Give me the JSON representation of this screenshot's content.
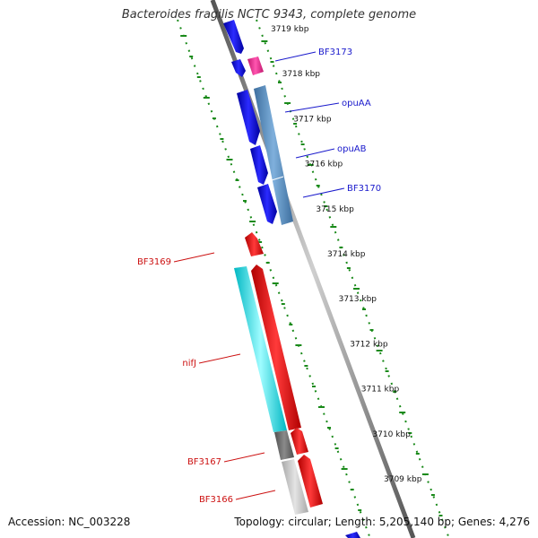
{
  "title": "Bacteroides fragilis NCTC 9343, complete genome",
  "footer": {
    "accession": "Accession: NC_003228",
    "summary": "Topology: circular; Length: 5,205,140 bp; Genes: 4,276"
  },
  "colors": {
    "label_forward": "#1a1acc",
    "label_reverse": "#cc1111",
    "gc_tick": "#1a8a1a",
    "backbone": "#888888"
  },
  "scale_ticks": [
    "3719 kbp",
    "3718 kbp",
    "3717 kbp",
    "3716 kbp",
    "3715 kbp",
    "3714 kbp",
    "3713 kbp",
    "3712 kbp",
    "3711 kbp",
    "3710 kbp",
    "3709 kbp"
  ],
  "forward_gene_labels": [
    "BF3173",
    "opuAA",
    "opuAB",
    "BF3170"
  ],
  "reverse_gene_labels": [
    "BF3169",
    "nifJ",
    "BF3167",
    "BF3166"
  ]
}
